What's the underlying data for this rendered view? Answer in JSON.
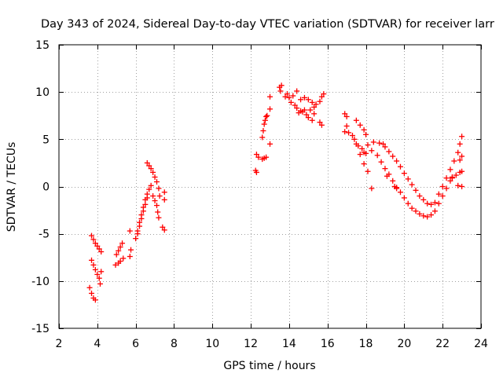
{
  "chart_data": {
    "type": "scatter",
    "title": "Day 343 of 2024, Sidereal Day-to-day VTEC variation (SDTVAR) for receiver larr",
    "xlabel": "GPS time / hours",
    "ylabel": "SDTVAR / TECUs",
    "xlim": [
      2,
      24
    ],
    "ylim": [
      -15,
      15
    ],
    "xticks": [
      2,
      4,
      6,
      8,
      10,
      12,
      14,
      16,
      18,
      20,
      22,
      24
    ],
    "yticks": [
      -15,
      -10,
      -5,
      0,
      5,
      10,
      15
    ],
    "grid": true,
    "marker": "+",
    "color": "#ff0000",
    "series": [
      {
        "name": "SDTVAR",
        "points": [
          [
            3.7,
            -5.2
          ],
          [
            3.8,
            -5.6
          ],
          [
            3.9,
            -6.0
          ],
          [
            4.0,
            -6.3
          ],
          [
            4.1,
            -6.6
          ],
          [
            4.2,
            -6.9
          ],
          [
            3.7,
            -7.8
          ],
          [
            3.8,
            -8.3
          ],
          [
            3.9,
            -8.8
          ],
          [
            4.0,
            -9.3
          ],
          [
            4.1,
            -9.7
          ],
          [
            4.2,
            -9.0
          ],
          [
            4.15,
            -10.3
          ],
          [
            3.6,
            -10.7
          ],
          [
            3.7,
            -11.3
          ],
          [
            3.8,
            -11.8
          ],
          [
            3.9,
            -12.0
          ],
          [
            4.95,
            -8.3
          ],
          [
            5.1,
            -8.1
          ],
          [
            5.2,
            -7.9
          ],
          [
            5.35,
            -7.6
          ],
          [
            5.0,
            -7.2
          ],
          [
            5.1,
            -6.8
          ],
          [
            5.2,
            -6.4
          ],
          [
            5.3,
            -6.0
          ],
          [
            5.7,
            -7.4
          ],
          [
            5.75,
            -6.7
          ],
          [
            5.7,
            -4.7
          ],
          [
            6.0,
            -5.5
          ],
          [
            6.1,
            -4.7
          ],
          [
            6.2,
            -3.8
          ],
          [
            6.3,
            -3.0
          ],
          [
            6.4,
            -2.2
          ],
          [
            6.5,
            -1.4
          ],
          [
            6.6,
            -0.8
          ],
          [
            6.7,
            -0.3
          ],
          [
            6.8,
            0.1
          ],
          [
            6.1,
            -5.0
          ],
          [
            6.2,
            -4.2
          ],
          [
            6.3,
            -3.4
          ],
          [
            6.4,
            -2.6
          ],
          [
            6.5,
            -1.9
          ],
          [
            6.6,
            -1.2
          ],
          [
            6.6,
            2.5
          ],
          [
            6.7,
            2.2
          ],
          [
            6.8,
            1.9
          ],
          [
            6.9,
            1.5
          ],
          [
            7.0,
            1.0
          ],
          [
            7.1,
            0.5
          ],
          [
            7.2,
            -0.2
          ],
          [
            7.25,
            -1.0
          ],
          [
            6.9,
            -1.0
          ],
          [
            7.0,
            -1.5
          ],
          [
            7.1,
            -2.0
          ],
          [
            7.15,
            -2.7
          ],
          [
            7.2,
            -3.3
          ],
          [
            7.4,
            -4.3
          ],
          [
            7.5,
            -4.6
          ],
          [
            7.5,
            -0.6
          ],
          [
            7.5,
            -1.4
          ],
          [
            12.25,
            1.7
          ],
          [
            12.3,
            1.5
          ],
          [
            12.3,
            3.4
          ],
          [
            12.4,
            3.1
          ],
          [
            12.6,
            2.9
          ],
          [
            12.7,
            3.0
          ],
          [
            12.8,
            3.1
          ],
          [
            12.6,
            5.2
          ],
          [
            12.65,
            5.9
          ],
          [
            12.7,
            6.6
          ],
          [
            12.75,
            7.0
          ],
          [
            12.8,
            7.4
          ],
          [
            12.85,
            7.5
          ],
          [
            13.0,
            4.5
          ],
          [
            13.0,
            8.2
          ],
          [
            13.0,
            9.5
          ],
          [
            13.5,
            10.5
          ],
          [
            13.55,
            10.1
          ],
          [
            13.6,
            10.7
          ],
          [
            13.8,
            9.5
          ],
          [
            13.9,
            9.8
          ],
          [
            14.0,
            9.4
          ],
          [
            14.1,
            8.9
          ],
          [
            14.2,
            9.6
          ],
          [
            14.3,
            8.6
          ],
          [
            14.4,
            8.3
          ],
          [
            14.5,
            7.8
          ],
          [
            14.6,
            8.0
          ],
          [
            14.7,
            7.9
          ],
          [
            14.8,
            8.1
          ],
          [
            14.9,
            7.6
          ],
          [
            15.0,
            7.3
          ],
          [
            15.1,
            8.1
          ],
          [
            14.4,
            10.1
          ],
          [
            14.6,
            9.2
          ],
          [
            14.8,
            9.4
          ],
          [
            15.0,
            9.2
          ],
          [
            15.2,
            8.9
          ],
          [
            15.4,
            8.7
          ],
          [
            15.2,
            7.0
          ],
          [
            15.3,
            7.7
          ],
          [
            15.3,
            8.4
          ],
          [
            15.6,
            6.8
          ],
          [
            15.6,
            9.0
          ],
          [
            15.7,
            9.5
          ],
          [
            15.8,
            9.8
          ],
          [
            15.7,
            6.5
          ],
          [
            16.9,
            7.7
          ],
          [
            17.0,
            7.4
          ],
          [
            17.0,
            6.4
          ],
          [
            17.1,
            5.7
          ],
          [
            17.3,
            5.4
          ],
          [
            17.4,
            5.0
          ],
          [
            17.5,
            4.5
          ],
          [
            17.6,
            4.3
          ],
          [
            17.8,
            4.0
          ],
          [
            17.5,
            7.0
          ],
          [
            17.7,
            6.5
          ],
          [
            17.9,
            6.0
          ],
          [
            18.0,
            5.5
          ],
          [
            17.7,
            3.4
          ],
          [
            17.9,
            3.6
          ],
          [
            18.0,
            3.5
          ],
          [
            18.1,
            4.4
          ],
          [
            18.4,
            4.7
          ],
          [
            18.7,
            4.6
          ],
          [
            18.9,
            4.5
          ],
          [
            19.0,
            4.2
          ],
          [
            18.3,
            3.8
          ],
          [
            18.6,
            3.3
          ],
          [
            18.8,
            2.6
          ],
          [
            19.0,
            1.9
          ],
          [
            19.2,
            1.3
          ],
          [
            19.4,
            0.6
          ],
          [
            19.6,
            -0.1
          ],
          [
            19.2,
            3.7
          ],
          [
            19.4,
            3.2
          ],
          [
            19.6,
            2.7
          ],
          [
            19.8,
            2.1
          ],
          [
            20.0,
            1.4
          ],
          [
            20.2,
            0.8
          ],
          [
            20.4,
            0.2
          ],
          [
            19.8,
            -0.6
          ],
          [
            20.0,
            -1.2
          ],
          [
            20.2,
            -1.8
          ],
          [
            20.4,
            -2.3
          ],
          [
            20.6,
            -2.6
          ],
          [
            20.8,
            -2.9
          ],
          [
            21.0,
            -3.1
          ],
          [
            21.2,
            -3.2
          ],
          [
            21.4,
            -3.0
          ],
          [
            20.6,
            -0.4
          ],
          [
            20.8,
            -1.0
          ],
          [
            21.0,
            -1.4
          ],
          [
            21.2,
            -1.8
          ],
          [
            21.4,
            -1.9
          ],
          [
            21.6,
            -1.7
          ],
          [
            19.5,
            0.0
          ],
          [
            19.6,
            -0.2
          ],
          [
            21.6,
            -2.6
          ],
          [
            21.8,
            -1.8
          ],
          [
            22.0,
            -1.0
          ],
          [
            22.2,
            -0.2
          ],
          [
            22.4,
            0.6
          ],
          [
            22.5,
            1.0
          ],
          [
            21.8,
            -0.8
          ],
          [
            22.0,
            0.0
          ],
          [
            22.2,
            0.9
          ],
          [
            22.4,
            1.8
          ],
          [
            22.6,
            2.7
          ],
          [
            22.8,
            3.6
          ],
          [
            22.9,
            4.5
          ],
          [
            23.0,
            5.3
          ],
          [
            22.5,
            0.9
          ],
          [
            22.7,
            1.2
          ],
          [
            22.9,
            1.5
          ],
          [
            23.0,
            1.6
          ],
          [
            22.9,
            2.8
          ],
          [
            23.0,
            3.2
          ],
          [
            22.8,
            0.1
          ],
          [
            23.0,
            0.0
          ],
          [
            18.3,
            -0.2
          ],
          [
            18.1,
            1.6
          ],
          [
            17.9,
            2.4
          ],
          [
            16.9,
            5.8
          ],
          [
            19.1,
            1.1
          ]
        ]
      }
    ]
  }
}
